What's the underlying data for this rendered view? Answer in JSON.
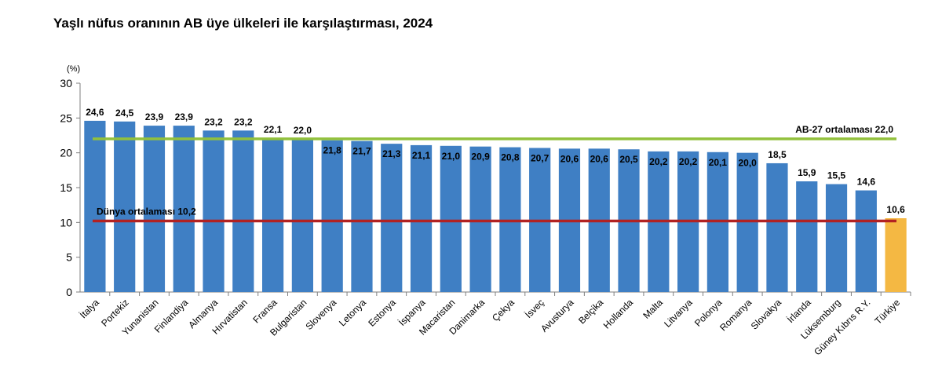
{
  "title": "Yaşlı nüfus oranının AB üye ülkeleri ile karşılaştırması, 2024",
  "chart_data": {
    "type": "bar",
    "unit_label": "(%)",
    "categories": [
      "İtalya",
      "Portekiz",
      "Yunanistan",
      "Finlandiya",
      "Almanya",
      "Hırvatistan",
      "Fransa",
      "Bulgaristan",
      "Slovenya",
      "Letonya",
      "Estonya",
      "İspanya",
      "Macaristan",
      "Danimarka",
      "Çekya",
      "İsveç",
      "Avusturya",
      "Belçika",
      "Hollanda",
      "Malta",
      "Litvanya",
      "Polonya",
      "Romanya",
      "Slovakya",
      "İrlanda",
      "Lüksemburg",
      "Güney Kıbrıs R.Y.",
      "Türkiye"
    ],
    "values": [
      24.6,
      24.5,
      23.9,
      23.9,
      23.2,
      23.2,
      22.1,
      22.0,
      21.8,
      21.7,
      21.3,
      21.1,
      21.0,
      20.9,
      20.8,
      20.7,
      20.6,
      20.6,
      20.5,
      20.2,
      20.2,
      20.1,
      20.0,
      18.5,
      15.9,
      15.5,
      14.6,
      10.6
    ],
    "value_labels": [
      "24,6",
      "24,5",
      "23,9",
      "23,9",
      "23,2",
      "23,2",
      "22,1",
      "22,0",
      "21,8",
      "21,7",
      "21,3",
      "21,1",
      "21,0",
      "20,9",
      "20,8",
      "20,7",
      "20,6",
      "20,6",
      "20,5",
      "20,2",
      "20,2",
      "20,1",
      "20,0",
      "18,5",
      "15,9",
      "15,5",
      "14,6",
      "10,6"
    ],
    "highlight_category": "Türkiye",
    "ylim": [
      0,
      30
    ],
    "yticks": [
      0,
      5,
      10,
      15,
      20,
      25,
      30
    ],
    "grid": false,
    "reference_lines": [
      {
        "label": "AB-27 ortalaması  22,0",
        "value": 22.0,
        "color": "#92c13c"
      },
      {
        "label": "Dünya ortalaması  10,2",
        "value": 10.2,
        "color": "#b22222"
      }
    ],
    "colors": {
      "bar": "#3f7fc4",
      "highlight": "#f4b843"
    }
  }
}
